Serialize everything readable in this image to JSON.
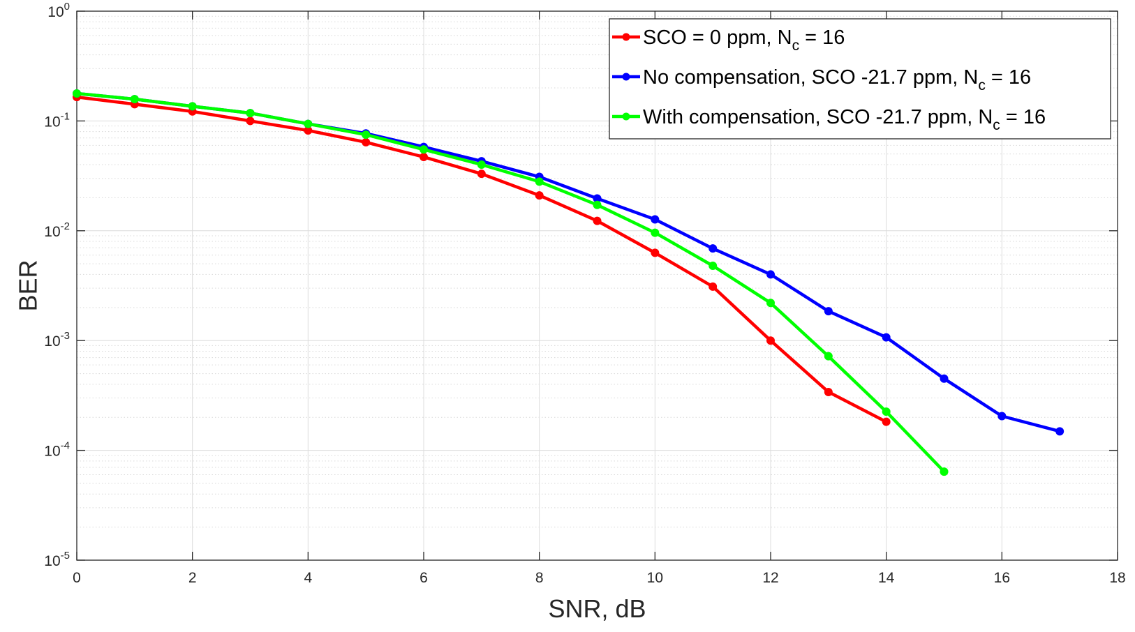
{
  "chart_data": {
    "type": "line",
    "title": "",
    "xlabel": "SNR, dB",
    "ylabel": "BER",
    "xlim": [
      0,
      18
    ],
    "ylim": [
      1e-05,
      1
    ],
    "yscale": "log",
    "grid": true,
    "minor_grid": true,
    "legend_position": "top-right",
    "x_ticks": [
      0,
      2,
      4,
      6,
      8,
      10,
      12,
      14,
      16,
      18
    ],
    "y_ticks": [
      {
        "base": "10",
        "exp": "-5",
        "value": 1e-05
      },
      {
        "base": "10",
        "exp": "-4",
        "value": 0.0001
      },
      {
        "base": "10",
        "exp": "-3",
        "value": 0.001
      },
      {
        "base": "10",
        "exp": "-2",
        "value": 0.01
      },
      {
        "base": "10",
        "exp": "-1",
        "value": 0.1
      },
      {
        "base": "10",
        "exp": "0",
        "value": 1
      }
    ],
    "series": [
      {
        "name": "SCO = 0 ppm, N",
        "name_sub": "c",
        "name_tail": " = 16",
        "color": "#ff0000",
        "x": [
          0,
          1,
          2,
          3,
          4,
          5,
          6,
          7,
          8,
          9,
          10,
          11,
          12,
          13,
          14
        ],
        "y": [
          0.165,
          0.142,
          0.122,
          0.1,
          0.082,
          0.064,
          0.047,
          0.033,
          0.021,
          0.0123,
          0.0063,
          0.0031,
          0.001,
          0.00034,
          0.000182
        ]
      },
      {
        "name": "No compensation, SCO -21.7 ppm, N",
        "name_sub": "c",
        "name_tail": " = 16",
        "color": "#0000ff",
        "x": [
          0,
          1,
          2,
          3,
          4,
          5,
          6,
          7,
          8,
          9,
          10,
          11,
          12,
          13,
          14,
          15,
          16,
          17
        ],
        "y": [
          0.178,
          0.158,
          0.136,
          0.118,
          0.094,
          0.077,
          0.058,
          0.043,
          0.031,
          0.0197,
          0.0127,
          0.0069,
          0.004,
          0.00185,
          0.00107,
          0.00045,
          0.000205,
          0.000149
        ]
      },
      {
        "name": "With compensation, SCO -21.7 ppm, N",
        "name_sub": "c",
        "name_tail": " = 16",
        "color": "#00ff00",
        "x": [
          0,
          1,
          2,
          3,
          4,
          5,
          6,
          7,
          8,
          9,
          10,
          11,
          12,
          13,
          14,
          15
        ],
        "y": [
          0.178,
          0.158,
          0.136,
          0.118,
          0.094,
          0.075,
          0.055,
          0.04,
          0.028,
          0.0172,
          0.0096,
          0.0048,
          0.0022,
          0.00072,
          0.000225,
          6.4e-05
        ]
      }
    ]
  }
}
